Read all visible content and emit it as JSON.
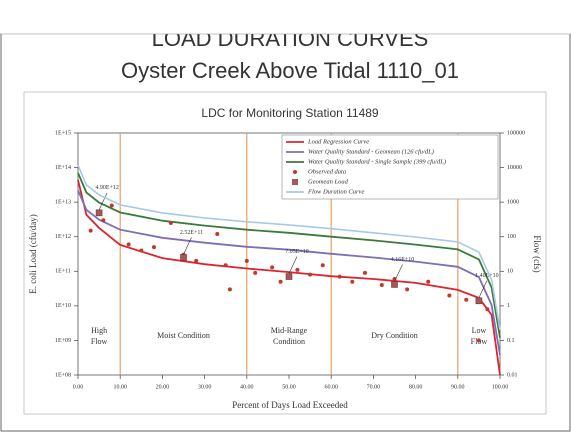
{
  "header": {
    "title": "LOAD DURATION CURVES",
    "subtitle": "Oyster Creek Above Tidal 1110_01"
  },
  "chart_data": {
    "type": "line",
    "title": "LDC for Monitoring Station 11489",
    "xlabel": "Percent of Days Load Exceeded",
    "ylabel": "E. coli Load (cfu/day)",
    "y2label": "Flow (cfs)",
    "ylog": true,
    "y2log": true,
    "legend": "upper right",
    "x": [
      0,
      2,
      5,
      10,
      20,
      30,
      40,
      50,
      60,
      70,
      80,
      90,
      95,
      98,
      100
    ],
    "xlim": [
      0,
      100
    ],
    "xticks": [
      {
        "value": 0,
        "label": "0.00"
      },
      {
        "value": 10,
        "label": "10.00"
      },
      {
        "value": 20,
        "label": "20.00"
      },
      {
        "value": 30,
        "label": "30.00"
      },
      {
        "value": 40,
        "label": "40.00"
      },
      {
        "value": 50,
        "label": "50.00"
      },
      {
        "value": 60,
        "label": "60.00"
      },
      {
        "value": 70,
        "label": "70.00"
      },
      {
        "value": 80,
        "label": "80.00"
      },
      {
        "value": 90,
        "label": "90.00"
      },
      {
        "value": 100,
        "label": "100.00"
      }
    ],
    "ylim": [
      100000000,
      1000000000000000
    ],
    "yticks": [
      {
        "value": 100000000,
        "label": "1E+08"
      },
      {
        "value": 1000000000,
        "label": "1E+09"
      },
      {
        "value": 10000000000,
        "label": "1E+10"
      },
      {
        "value": 100000000000,
        "label": "1E+11"
      },
      {
        "value": 1000000000000,
        "label": "1E+12"
      },
      {
        "value": 10000000000000,
        "label": "1E+13"
      },
      {
        "value": 100000000000000,
        "label": "1E+14"
      },
      {
        "value": 1000000000000000,
        "label": "1E+15"
      }
    ],
    "y2lim": [
      0.01,
      100000
    ],
    "y2ticks": [
      0.01,
      0.1,
      1,
      10,
      100,
      1000,
      10000,
      100000
    ],
    "regions": [
      {
        "name": "High Flow",
        "from": 0,
        "to": 10
      },
      {
        "name": "Moist Condition",
        "from": 10,
        "to": 40
      },
      {
        "name": "Mid-Range Condition",
        "from": 40,
        "to": 60
      },
      {
        "name": "Dry Condition",
        "from": 60,
        "to": 90
      },
      {
        "name": "Low Flow",
        "from": 90,
        "to": 100
      }
    ],
    "region_color": "#e8a060",
    "series": [
      {
        "name": "Load Regression Curve",
        "type": "line",
        "color": "#d9262e",
        "values": [
          44000000000000,
          4300000000000,
          1800000000000,
          580000000000,
          240000000000,
          160000000000,
          120000000000,
          95000000000,
          72000000000,
          60000000000,
          46000000000,
          29000000000,
          17000000000,
          5500000000,
          100000000
        ]
      },
      {
        "name": "Water Quality Standard - Geomean (126 cfu/dL)",
        "type": "line",
        "color": "#7b6fb8",
        "values": [
          22000000000000,
          6000000000000,
          3100000000000,
          1600000000000,
          930000000000,
          670000000000,
          510000000000,
          420000000000,
          320000000000,
          250000000000,
          190000000000,
          135000000000,
          68000000000,
          10600000000,
          380000000
        ]
      },
      {
        "name": "Water Quality Standard - Single Sample (399 cfu/dL)",
        "type": "line",
        "color": "#3d7a3a",
        "values": [
          70000000000000,
          19000000000000,
          9700000000000,
          5000000000000,
          2900000000000,
          2100000000000,
          1600000000000,
          1300000000000,
          1000000000000,
          780000000000,
          590000000000,
          430000000000,
          220000000000,
          34000000000,
          1200000000
        ]
      },
      {
        "name": "Observed data",
        "type": "scatter",
        "marker": "circle",
        "color": "#c0392b",
        "x": [
          3,
          5,
          6,
          8,
          12,
          15,
          18,
          22,
          25,
          28,
          33,
          35,
          36,
          40,
          42,
          46,
          48,
          52,
          55,
          58,
          62,
          65,
          68,
          72,
          75,
          78,
          83,
          88,
          92,
          95,
          97
        ],
        "values": [
          1500000000000,
          5000000000000,
          3000000000000,
          8000000000000,
          600000000000,
          400000000000,
          500000000000,
          2500000000000,
          300000000000,
          200000000000,
          1200000000000,
          150000000000,
          30000000000,
          200000000000,
          90000000000,
          130000000000,
          50000000000,
          110000000000,
          80000000000,
          150000000000,
          70000000000,
          50000000000,
          90000000000,
          40000000000,
          60000000000,
          30000000000,
          50000000000,
          20000000000,
          15000000000,
          1000000000,
          8000000000
        ]
      },
      {
        "name": "Geomean Load",
        "type": "scatter",
        "marker": "square",
        "color": "#a05a5a",
        "x": [
          5,
          25,
          50,
          75,
          95
        ],
        "values": [
          4900000000000,
          252000000000,
          70500000000,
          41600000000,
          14000000000
        ],
        "value_labels": [
          "4.90E+12",
          "2.52E+11",
          "7.05E+10",
          "4.16E+10",
          "1.40E+10"
        ]
      },
      {
        "name": "Flow Duration Curve",
        "type": "line",
        "axis": "y2",
        "color": "#a8c8e8",
        "values": [
          11700,
          3160,
          1620,
          830,
          490,
          350,
          270,
          220,
          170,
          130,
          98,
          71,
          36,
          5.6,
          0.2
        ]
      }
    ]
  }
}
